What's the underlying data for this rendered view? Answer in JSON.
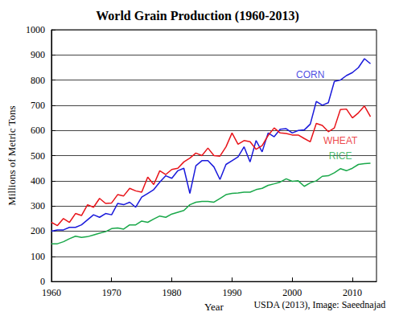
{
  "chart_data": {
    "type": "line",
    "title": "World Grain Production (1960-2013)",
    "x_label": "Year",
    "y_label": "Millions of Metric Tons",
    "caption": "USDA (2013), Image: Saeednajad",
    "x": [
      1960,
      1961,
      1962,
      1963,
      1964,
      1965,
      1966,
      1967,
      1968,
      1969,
      1970,
      1971,
      1972,
      1973,
      1974,
      1975,
      1976,
      1977,
      1978,
      1979,
      1980,
      1981,
      1982,
      1983,
      1984,
      1985,
      1986,
      1987,
      1988,
      1989,
      1990,
      1991,
      1992,
      1993,
      1994,
      1995,
      1996,
      1997,
      1998,
      1999,
      2000,
      2001,
      2002,
      2003,
      2004,
      2005,
      2006,
      2007,
      2008,
      2009,
      2010,
      2011,
      2012,
      2013
    ],
    "series": [
      {
        "name": "CORN",
        "color": "#1a1adb",
        "values": [
          200,
          205,
          205,
          215,
          215,
          225,
          245,
          265,
          255,
          270,
          265,
          310,
          305,
          315,
          295,
          335,
          350,
          365,
          395,
          420,
          410,
          440,
          450,
          350,
          460,
          480,
          480,
          455,
          405,
          465,
          480,
          495,
          535,
          475,
          560,
          515,
          590,
          575,
          605,
          607,
          590,
          600,
          602,
          625,
          715,
          700,
          710,
          795,
          800,
          818,
          830,
          850,
          885,
          865
        ]
      },
      {
        "name": "WHEAT",
        "color": "#e8141a",
        "values": [
          235,
          222,
          250,
          235,
          270,
          262,
          305,
          295,
          330,
          310,
          312,
          345,
          340,
          370,
          360,
          355,
          415,
          385,
          440,
          425,
          445,
          450,
          475,
          490,
          510,
          500,
          530,
          500,
          498,
          535,
          590,
          545,
          560,
          555,
          525,
          540,
          580,
          610,
          590,
          588,
          582,
          582,
          568,
          555,
          628,
          620,
          595,
          610,
          683,
          685,
          650,
          670,
          697,
          655
        ]
      },
      {
        "name": "RICE",
        "color": "#1aa84a",
        "values": [
          150,
          150,
          158,
          170,
          180,
          175,
          178,
          185,
          192,
          198,
          210,
          213,
          208,
          225,
          225,
          240,
          235,
          248,
          260,
          255,
          268,
          275,
          282,
          305,
          315,
          318,
          318,
          315,
          330,
          345,
          350,
          352,
          355,
          355,
          365,
          370,
          382,
          388,
          395,
          408,
          398,
          400,
          378,
          392,
          400,
          418,
          420,
          432,
          448,
          440,
          450,
          465,
          468,
          470
        ]
      }
    ],
    "annotations": [
      {
        "text": "CORN",
        "x": 2003,
        "y": 820
      },
      {
        "text": "WHEAT",
        "x": 2008,
        "y": 560
      },
      {
        "text": "RICE",
        "x": 2008,
        "y": 500
      }
    ],
    "xlim": [
      1960,
      2014
    ],
    "xticks": [
      1960,
      1970,
      1980,
      1990,
      2000,
      2010
    ],
    "ylim": [
      0,
      1000
    ],
    "yticks": [
      0,
      100,
      200,
      300,
      400,
      500,
      600,
      700,
      800,
      900,
      1000
    ],
    "grid": true
  }
}
